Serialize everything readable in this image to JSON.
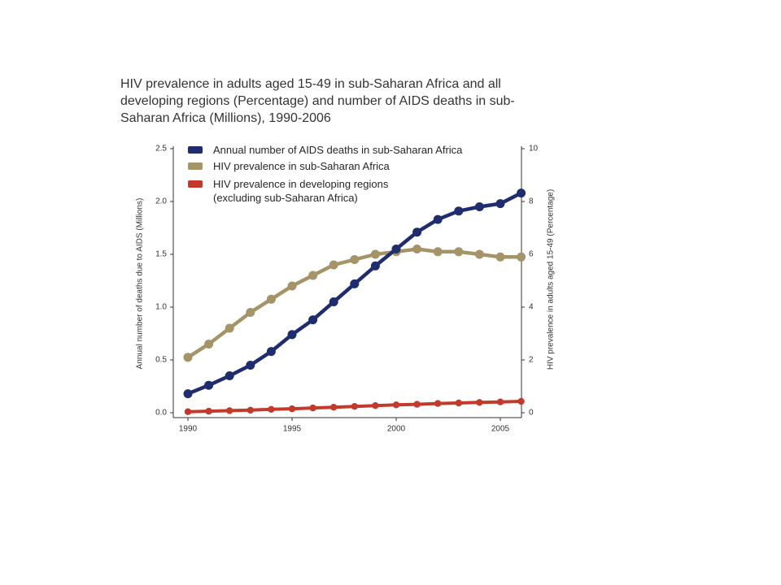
{
  "chart_data": {
    "type": "line",
    "title": "HIV prevalence in adults aged 15-49 in sub-Saharan Africa and all developing regions (Percentage) and number of AIDS deaths in sub-Saharan Africa (Millions), 1990-2006",
    "x": [
      1990,
      1991,
      1992,
      1993,
      1994,
      1995,
      1996,
      1997,
      1998,
      1999,
      2000,
      2001,
      2002,
      2003,
      2004,
      2005,
      2006
    ],
    "x_axis": {
      "range": [
        1990,
        2006
      ],
      "ticks": [
        "1990",
        "1995",
        "2000",
        "2005"
      ]
    },
    "y_left": {
      "label": "Annual number of deaths due to AIDS (Millions)",
      "range": [
        0,
        2.5
      ],
      "ticks": [
        "0.0",
        "0.5",
        "1.0",
        "1.5",
        "2.0",
        "2.5"
      ]
    },
    "y_right": {
      "label": "HIV prevalence in adults aged 15-49 (Percentage)",
      "range": [
        0,
        10
      ],
      "ticks": [
        "0",
        "2",
        "4",
        "6",
        "8",
        "10"
      ]
    },
    "series": [
      {
        "name": "Annual number of AIDS deaths in sub-Saharan Africa",
        "axis": "left",
        "color": "#1f2d6e",
        "values": [
          0.18,
          0.26,
          0.35,
          0.45,
          0.58,
          0.74,
          0.88,
          1.05,
          1.22,
          1.39,
          1.55,
          1.71,
          1.83,
          1.91,
          1.95,
          1.98,
          2.08
        ]
      },
      {
        "name": "HIV prevalence in sub-Saharan Africa",
        "axis": "right",
        "color": "#a49467",
        "values": [
          2.1,
          2.6,
          3.2,
          3.8,
          4.3,
          4.8,
          5.2,
          5.6,
          5.8,
          6.0,
          6.1,
          6.2,
          6.1,
          6.1,
          6.0,
          5.9,
          5.9
        ]
      },
      {
        "name": "HIV prevalence in developing regions (excluding sub-Saharan Africa)",
        "axis": "right",
        "color": "#c23a2b",
        "values": [
          0.04,
          0.06,
          0.08,
          0.1,
          0.13,
          0.15,
          0.18,
          0.21,
          0.24,
          0.27,
          0.3,
          0.32,
          0.35,
          0.37,
          0.39,
          0.41,
          0.43
        ]
      }
    ],
    "legend": {
      "placement": "top-left"
    },
    "grid": false
  }
}
